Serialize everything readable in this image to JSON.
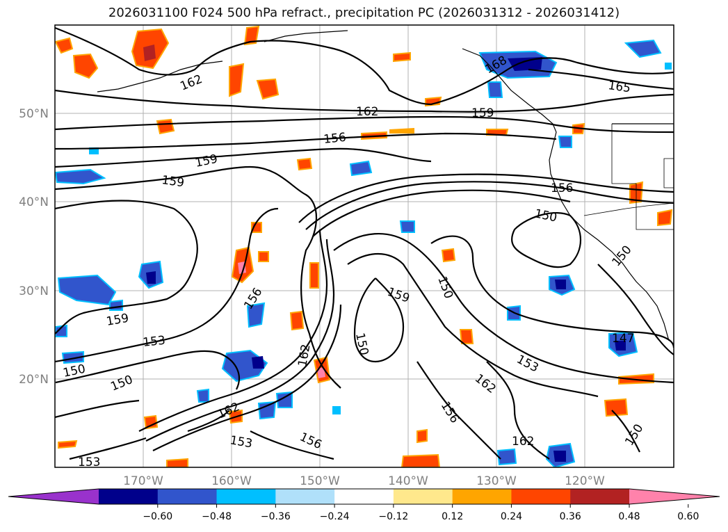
{
  "title": "2026031100 F024 500 hPa refract., precipitation PC (2026031312 - 2026031412)",
  "lat_labels": [
    "50°N",
    "40°N",
    "30°N",
    "20°N"
  ],
  "lon_labels": [
    "170°W",
    "160°W",
    "150°W",
    "140°W",
    "130°W",
    "120°W"
  ],
  "contour_labels": [
    "162",
    "162",
    "159",
    "165",
    "156",
    "159",
    "159",
    "156",
    "150",
    "150",
    "147",
    "156",
    "159",
    "150",
    "162",
    "150",
    "159",
    "153",
    "150",
    "150",
    "162",
    "153",
    "156",
    "162",
    "156",
    "162",
    "153",
    "150",
    "153",
    "168"
  ],
  "colorbar": {
    "colors": [
      "#9932cc",
      "#00008b",
      "#3155cc",
      "#00bfff",
      "#b0e0fa",
      "#ffffff",
      "#ffe88c",
      "#ffa500",
      "#ff4500",
      "#b22222",
      "#ff82ab"
    ],
    "ticks": [
      "−0.60",
      "−0.48",
      "−0.36",
      "−0.24",
      "−0.12",
      "0.12",
      "0.24",
      "0.36",
      "0.48",
      "0.60"
    ]
  },
  "colors": {
    "contour": "#000000",
    "grid": "#b0b0b0",
    "axis_labels": "#7f7f7f"
  }
}
